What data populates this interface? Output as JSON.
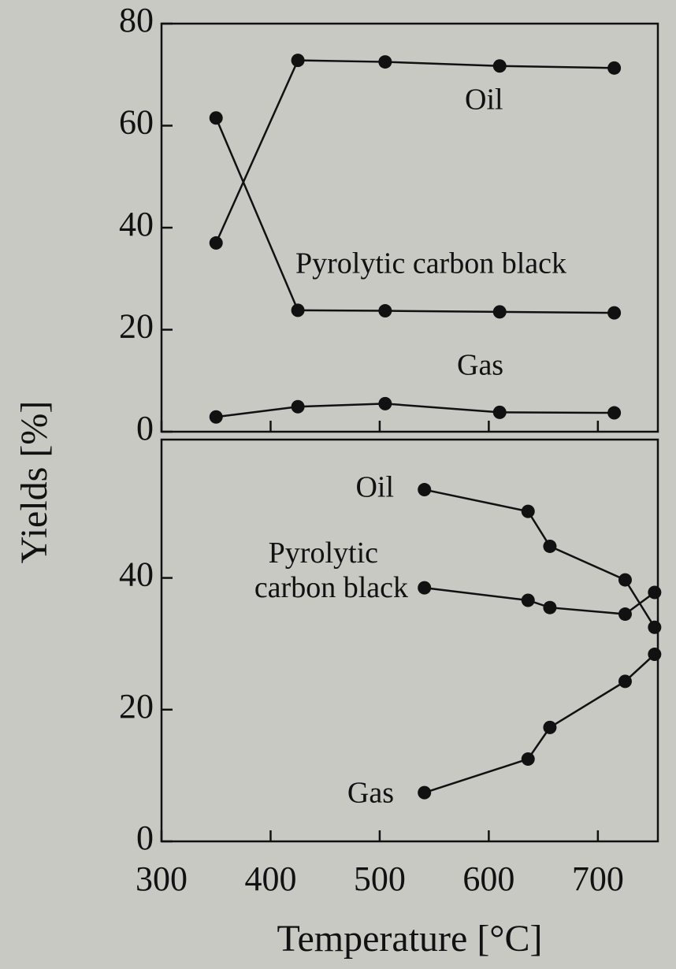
{
  "chart_data": [
    {
      "type": "line",
      "ylabel": "Yields [%]",
      "xlim": [
        300,
        755
      ],
      "ylim": [
        0,
        80
      ],
      "yticks": [
        0,
        20,
        40,
        60,
        80
      ],
      "x": [
        350,
        425,
        505,
        610,
        715
      ],
      "series": [
        {
          "name": "Oil",
          "color": "#111111",
          "values": [
            37,
            72.8,
            72.5,
            71.7,
            71.3
          ]
        },
        {
          "name": "Pyrolytic carbon black",
          "color": "#111111",
          "values": [
            61.5,
            23.8,
            23.7,
            23.5,
            23.3
          ]
        },
        {
          "name": "Gas",
          "color": "#111111",
          "values": [
            2.9,
            4.9,
            5.5,
            3.8,
            3.7
          ]
        }
      ]
    },
    {
      "type": "line",
      "xlabel": "Temperature [°C]",
      "xlim": [
        300,
        755
      ],
      "ylim": [
        0,
        61
      ],
      "yticks": [
        0,
        20,
        40
      ],
      "xticks": [
        300,
        400,
        500,
        600,
        700
      ],
      "x": [
        541,
        636,
        656,
        725,
        752
      ],
      "series": [
        {
          "name": "Oil",
          "color": "#111111",
          "values": [
            53.4,
            50.1,
            44.8,
            39.7,
            32.5
          ]
        },
        {
          "name": "Pyrolytic carbon black",
          "color": "#111111",
          "values": [
            38.5,
            36.6,
            35.5,
            34.5,
            37.8
          ]
        },
        {
          "name": "Gas",
          "color": "#111111",
          "values": [
            7.4,
            12.5,
            17.3,
            24.3,
            28.4
          ]
        }
      ]
    }
  ]
}
